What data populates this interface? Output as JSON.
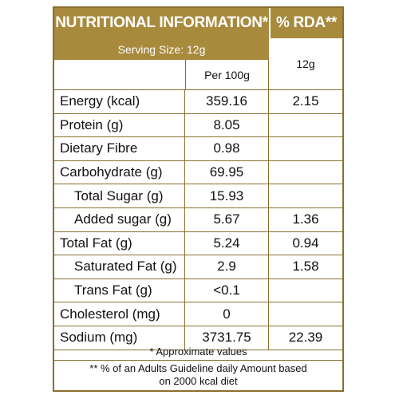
{
  "header": {
    "title": "NUTRITIONAL INFORMATION*",
    "rda_title": "% RDA**",
    "serving_size": "Serving Size:  12g",
    "per_label": "Per  100g",
    "rda_sub": "12g"
  },
  "rows": [
    {
      "name": "Energy (kcal)",
      "value": "359.16",
      "rda": "2.15",
      "indent": false
    },
    {
      "name": "Protein (g)",
      "value": "8.05",
      "rda": "",
      "indent": false
    },
    {
      "name": "Dietary Fibre",
      "value": "0.98",
      "rda": "",
      "indent": false
    },
    {
      "name": "Carbohydrate (g)",
      "value": "69.95",
      "rda": "",
      "indent": false
    },
    {
      "name": "Total Sugar (g)",
      "value": "15.93",
      "rda": "",
      "indent": true
    },
    {
      "name": "Added sugar (g)",
      "value": "5.67",
      "rda": "1.36",
      "indent": true
    },
    {
      "name": "Total Fat (g)",
      "value": "5.24",
      "rda": "0.94",
      "indent": false
    },
    {
      "name": "Saturated Fat (g)",
      "value": "2.9",
      "rda": "1.58",
      "indent": true
    },
    {
      "name": "Trans Fat (g)",
      "value": "<0.1",
      "rda": "",
      "indent": true
    },
    {
      "name": "Cholesterol (mg)",
      "value": "0",
      "rda": "",
      "indent": false
    },
    {
      "name": "Sodium (mg)",
      "value": "3731.75",
      "rda": "22.39",
      "indent": false
    }
  ],
  "footer": {
    "note1": "* Approximate values",
    "note2_line1": "** % of an Adults Guideline daily Amount based",
    "note2_line2": "on 2000 kcal diet"
  },
  "colors": {
    "header_bg": "#a88a3d",
    "border": "#8a6f2e"
  }
}
